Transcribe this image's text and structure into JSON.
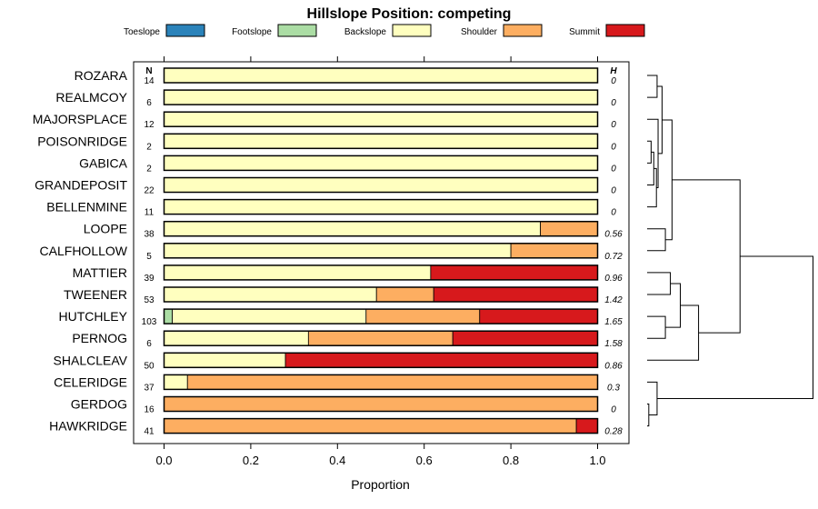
{
  "chart_data": {
    "type": "bar",
    "orientation": "horizontal",
    "stacked": true,
    "title": "Hillslope Position: competing",
    "xlabel": "Proportion",
    "xlim": [
      0,
      1
    ],
    "xticks": [
      "0.0",
      "0.2",
      "0.4",
      "0.6",
      "0.8",
      "1.0"
    ],
    "n_header": "N",
    "h_header": "H",
    "legend": [
      {
        "name": "Toeslope",
        "color": "#2b83ba"
      },
      {
        "name": "Footslope",
        "color": "#abdda4"
      },
      {
        "name": "Backslope",
        "color": "#ffffbf"
      },
      {
        "name": "Shoulder",
        "color": "#fdae61"
      },
      {
        "name": "Summit",
        "color": "#d7191c"
      }
    ],
    "rows": [
      {
        "name": "ROZARA",
        "n": "14",
        "h": "0",
        "values": [
          0,
          0,
          1.0,
          0,
          0
        ]
      },
      {
        "name": "REALMCOY",
        "n": "6",
        "h": "0",
        "values": [
          0,
          0,
          1.0,
          0,
          0
        ]
      },
      {
        "name": "MAJORSPLACE",
        "n": "12",
        "h": "0",
        "values": [
          0,
          0,
          1.0,
          0,
          0
        ]
      },
      {
        "name": "POISONRIDGE",
        "n": "2",
        "h": "0",
        "values": [
          0,
          0,
          1.0,
          0,
          0
        ]
      },
      {
        "name": "GABICA",
        "n": "2",
        "h": "0",
        "values": [
          0,
          0,
          1.0,
          0,
          0
        ]
      },
      {
        "name": "GRANDEPOSIT",
        "n": "22",
        "h": "0",
        "values": [
          0,
          0,
          1.0,
          0,
          0
        ]
      },
      {
        "name": "BELLENMINE",
        "n": "11",
        "h": "0",
        "values": [
          0,
          0,
          1.0,
          0,
          0
        ]
      },
      {
        "name": "LOOPE",
        "n": "38",
        "h": "0.56",
        "values": [
          0,
          0,
          0.868,
          0.132,
          0
        ]
      },
      {
        "name": "CALFHOLLOW",
        "n": "5",
        "h": "0.72",
        "values": [
          0,
          0,
          0.8,
          0.2,
          0
        ]
      },
      {
        "name": "MATTIER",
        "n": "39",
        "h": "0.96",
        "values": [
          0,
          0,
          0.615,
          0,
          0.385
        ]
      },
      {
        "name": "TWEENER",
        "n": "53",
        "h": "1.42",
        "values": [
          0,
          0,
          0.49,
          0.132,
          0.378
        ]
      },
      {
        "name": "HUTCHLEY",
        "n": "103",
        "h": "1.65",
        "values": [
          0,
          0.019,
          0.447,
          0.262,
          0.272
        ]
      },
      {
        "name": "PERNOG",
        "n": "6",
        "h": "1.58",
        "values": [
          0,
          0,
          0.333,
          0.333,
          0.334
        ]
      },
      {
        "name": "SHALCLEAV",
        "n": "50",
        "h": "0.86",
        "values": [
          0,
          0,
          0.28,
          0,
          0.72
        ]
      },
      {
        "name": "CELERIDGE",
        "n": "37",
        "h": "0.3",
        "values": [
          0,
          0,
          0.054,
          0.946,
          0
        ]
      },
      {
        "name": "GERDOG",
        "n": "16",
        "h": "0",
        "values": [
          0,
          0,
          0,
          1.0,
          0
        ]
      },
      {
        "name": "HAWKRIDGE",
        "n": "41",
        "h": "0.28",
        "values": [
          0,
          0,
          0,
          0.951,
          0.049
        ]
      }
    ],
    "dendrogram": {
      "merges": [
        [
          0,
          1,
          0.3
        ],
        [
          3,
          4,
          0.12
        ],
        [
          -2,
          5,
          0.2
        ],
        [
          -3,
          6,
          0.28
        ],
        [
          2,
          -4,
          0.33
        ],
        [
          -1,
          -5,
          0.45
        ],
        [
          7,
          8,
          0.55
        ],
        [
          -6,
          -7,
          0.75
        ],
        [
          9,
          10,
          0.7
        ],
        [
          11,
          12,
          0.55
        ],
        [
          -9,
          -10,
          1.0
        ],
        [
          -11,
          13,
          1.55
        ],
        [
          15,
          16,
          0.05
        ],
        [
          14,
          -13,
          0.3
        ],
        [
          -8,
          -12,
          2.8
        ],
        [
          -15,
          -14,
          5.0
        ]
      ]
    }
  }
}
